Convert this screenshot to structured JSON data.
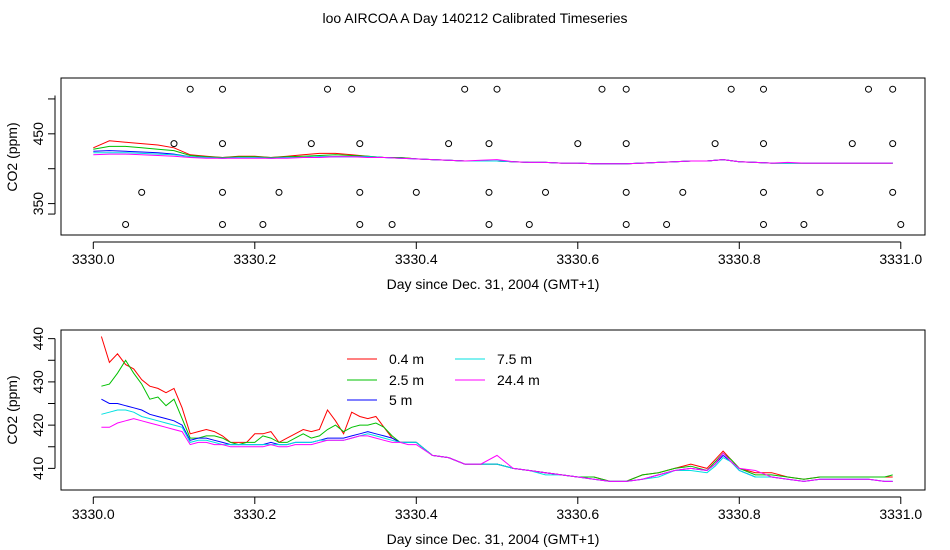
{
  "title": "loo AIRCOA A  Day 140212  Calibrated Timeseries",
  "chart_data": [
    {
      "type": "scatter",
      "xlabel": "Day since Dec. 31, 2004 (GMT+1)",
      "ylabel": "CO2 (ppm)",
      "xlim": [
        3329.96,
        3331.03
      ],
      "ylim": [
        305,
        530
      ],
      "xticks": [
        "3330.0",
        "3330.2",
        "3330.4",
        "3330.6",
        "3330.8",
        "3331.0"
      ],
      "yticks": [
        "350",
        "450"
      ],
      "x": [
        3330.0,
        3330.02,
        3330.04,
        3330.06,
        3330.08,
        3330.1,
        3330.12,
        3330.14,
        3330.16,
        3330.18,
        3330.2,
        3330.22,
        3330.24,
        3330.26,
        3330.28,
        3330.3,
        3330.32,
        3330.34,
        3330.36,
        3330.38,
        3330.4,
        3330.42,
        3330.44,
        3330.46,
        3330.48,
        3330.5,
        3330.52,
        3330.54,
        3330.56,
        3330.58,
        3330.6,
        3330.62,
        3330.64,
        3330.66,
        3330.68,
        3330.7,
        3330.72,
        3330.74,
        3330.76,
        3330.78,
        3330.8,
        3330.82,
        3330.84,
        3330.86,
        3330.88,
        3330.9,
        3330.92,
        3330.94,
        3330.96,
        3330.98,
        3330.99
      ],
      "series": [
        {
          "color": "#ff0000",
          "values": [
            430,
            440,
            438,
            436,
            434,
            430,
            420,
            418,
            416,
            418,
            418,
            416,
            418,
            420,
            422,
            422,
            420,
            418,
            416,
            416,
            414,
            413,
            412,
            411,
            411,
            411,
            410,
            409,
            409,
            408,
            408,
            407,
            407,
            407,
            408,
            409,
            410,
            411,
            411,
            413,
            410,
            409,
            408,
            408,
            408,
            408,
            408,
            408,
            408,
            408,
            408
          ]
        },
        {
          "color": "#00c000",
          "values": [
            428,
            432,
            432,
            430,
            428,
            426,
            419,
            417,
            416,
            417,
            417,
            416,
            417,
            418,
            419,
            420,
            419,
            418,
            416,
            416,
            414,
            413,
            412,
            411,
            411,
            411,
            410,
            409,
            409,
            408,
            408,
            407,
            407,
            407,
            408,
            409,
            410,
            411,
            411,
            413,
            410,
            409,
            408,
            408,
            408,
            408,
            408,
            408,
            408,
            408,
            408
          ]
        },
        {
          "color": "#0000ff",
          "values": [
            425,
            426,
            425,
            424,
            423,
            421,
            417,
            416,
            415,
            416,
            416,
            415,
            416,
            416,
            417,
            417,
            417,
            417,
            416,
            415,
            414,
            413,
            412,
            411,
            411,
            411,
            410,
            409,
            409,
            408,
            408,
            407,
            407,
            407,
            408,
            409,
            410,
            411,
            411,
            413,
            410,
            409,
            408,
            408,
            408,
            408,
            408,
            408,
            408,
            408,
            408
          ]
        },
        {
          "color": "#00e0e0",
          "values": [
            423,
            423,
            423,
            422,
            421,
            420,
            417,
            416,
            415,
            416,
            416,
            415,
            416,
            416,
            417,
            417,
            417,
            417,
            416,
            415,
            414,
            413,
            412,
            411,
            411,
            411,
            410,
            409,
            409,
            408,
            408,
            407,
            407,
            407,
            408,
            409,
            410,
            411,
            411,
            413,
            410,
            409,
            408,
            408,
            408,
            408,
            408,
            408,
            408,
            408,
            408
          ]
        },
        {
          "color": "#ff00ff",
          "values": [
            420,
            421,
            421,
            420,
            419,
            418,
            416,
            415,
            415,
            415,
            415,
            415,
            415,
            416,
            416,
            417,
            417,
            416,
            416,
            415,
            414,
            413,
            412,
            411,
            412,
            413,
            410,
            409,
            409,
            408,
            408,
            407,
            407,
            407,
            408,
            409,
            410,
            411,
            411,
            413,
            410,
            409,
            408,
            409,
            408,
            408,
            408,
            408,
            408,
            408,
            408
          ]
        }
      ],
      "points": [
        {
          "x": 3330.12,
          "y": 514
        },
        {
          "x": 3330.16,
          "y": 514
        },
        {
          "x": 3330.29,
          "y": 514
        },
        {
          "x": 3330.32,
          "y": 514
        },
        {
          "x": 3330.46,
          "y": 514
        },
        {
          "x": 3330.5,
          "y": 514
        },
        {
          "x": 3330.63,
          "y": 514
        },
        {
          "x": 3330.66,
          "y": 514
        },
        {
          "x": 3330.79,
          "y": 514
        },
        {
          "x": 3330.83,
          "y": 514
        },
        {
          "x": 3330.96,
          "y": 514
        },
        {
          "x": 3330.99,
          "y": 514
        },
        {
          "x": 3330.1,
          "y": 436
        },
        {
          "x": 3330.16,
          "y": 436
        },
        {
          "x": 3330.27,
          "y": 436
        },
        {
          "x": 3330.33,
          "y": 436
        },
        {
          "x": 3330.44,
          "y": 436
        },
        {
          "x": 3330.49,
          "y": 436
        },
        {
          "x": 3330.6,
          "y": 436
        },
        {
          "x": 3330.66,
          "y": 436
        },
        {
          "x": 3330.77,
          "y": 436
        },
        {
          "x": 3330.83,
          "y": 436
        },
        {
          "x": 3330.94,
          "y": 436
        },
        {
          "x": 3330.99,
          "y": 436
        },
        {
          "x": 3330.06,
          "y": 366
        },
        {
          "x": 3330.16,
          "y": 366
        },
        {
          "x": 3330.23,
          "y": 366
        },
        {
          "x": 3330.33,
          "y": 366
        },
        {
          "x": 3330.4,
          "y": 366
        },
        {
          "x": 3330.49,
          "y": 366
        },
        {
          "x": 3330.56,
          "y": 366
        },
        {
          "x": 3330.66,
          "y": 366
        },
        {
          "x": 3330.73,
          "y": 366
        },
        {
          "x": 3330.83,
          "y": 366
        },
        {
          "x": 3330.9,
          "y": 366
        },
        {
          "x": 3330.99,
          "y": 366
        },
        {
          "x": 3330.04,
          "y": 320
        },
        {
          "x": 3330.16,
          "y": 320
        },
        {
          "x": 3330.21,
          "y": 320
        },
        {
          "x": 3330.33,
          "y": 320
        },
        {
          "x": 3330.37,
          "y": 320
        },
        {
          "x": 3330.49,
          "y": 320
        },
        {
          "x": 3330.54,
          "y": 320
        },
        {
          "x": 3330.66,
          "y": 320
        },
        {
          "x": 3330.71,
          "y": 320
        },
        {
          "x": 3330.83,
          "y": 320
        },
        {
          "x": 3330.88,
          "y": 320
        },
        {
          "x": 3331.0,
          "y": 320
        }
      ]
    },
    {
      "type": "line",
      "xlabel": "Day since Dec. 31, 2004 (GMT+1)",
      "ylabel": "CO2 (ppm)",
      "xlim": [
        3329.96,
        3331.03
      ],
      "ylim": [
        405,
        442
      ],
      "xticks": [
        "3330.0",
        "3330.2",
        "3330.4",
        "3330.6",
        "3330.8",
        "3331.0"
      ],
      "yticks": [
        "410",
        "420",
        "430",
        "440"
      ],
      "legend": "top-center",
      "x": [
        3330.01,
        3330.02,
        3330.03,
        3330.04,
        3330.05,
        3330.06,
        3330.07,
        3330.08,
        3330.09,
        3330.1,
        3330.11,
        3330.12,
        3330.13,
        3330.14,
        3330.15,
        3330.16,
        3330.17,
        3330.18,
        3330.19,
        3330.2,
        3330.21,
        3330.22,
        3330.23,
        3330.24,
        3330.25,
        3330.26,
        3330.27,
        3330.28,
        3330.29,
        3330.3,
        3330.31,
        3330.32,
        3330.33,
        3330.34,
        3330.35,
        3330.36,
        3330.37,
        3330.38,
        3330.39,
        3330.4,
        3330.42,
        3330.44,
        3330.46,
        3330.48,
        3330.5,
        3330.52,
        3330.54,
        3330.56,
        3330.58,
        3330.6,
        3330.62,
        3330.64,
        3330.66,
        3330.68,
        3330.7,
        3330.72,
        3330.74,
        3330.76,
        3330.77,
        3330.78,
        3330.79,
        3330.8,
        3330.82,
        3330.84,
        3330.86,
        3330.88,
        3330.9,
        3330.92,
        3330.94,
        3330.96,
        3330.98,
        3330.99
      ],
      "series": [
        {
          "name": "0.4 m",
          "color": "#ff0000",
          "values": [
            440.5,
            434.5,
            436.5,
            434,
            433,
            430.5,
            429,
            428.5,
            427.5,
            428.5,
            424,
            418,
            418.5,
            419,
            418.5,
            417.5,
            416,
            416,
            416,
            418,
            418,
            418.5,
            416,
            417,
            418,
            419,
            418.5,
            419,
            423.5,
            421,
            418,
            423,
            422,
            421.5,
            422,
            419.5,
            417,
            416,
            416,
            416,
            413,
            412.5,
            411,
            411,
            411,
            410,
            409.5,
            409,
            408.5,
            408,
            408,
            407,
            407,
            408.5,
            409,
            410,
            411,
            410,
            412,
            414,
            412,
            410,
            409,
            409,
            408,
            407.5,
            408,
            408,
            408,
            408,
            408,
            408
          ]
        },
        {
          "name": "2.5 m",
          "color": "#00c000",
          "values": [
            429,
            429.5,
            432,
            435,
            432,
            429.5,
            426,
            426.5,
            424.5,
            426,
            421.5,
            417,
            417,
            417.5,
            417.5,
            417,
            416,
            415.5,
            416,
            416,
            417.5,
            417,
            416,
            416,
            417,
            418,
            417,
            417.5,
            419,
            420,
            418.5,
            419.5,
            420,
            420,
            420.5,
            419.5,
            417.5,
            416,
            416,
            416,
            413,
            412.5,
            411,
            411,
            411,
            410,
            409.5,
            409,
            408.5,
            408,
            408,
            407,
            407,
            408.5,
            409,
            410,
            410.5,
            409.5,
            411.5,
            413.5,
            412,
            410,
            408.5,
            408.5,
            408,
            407.5,
            408,
            408,
            408,
            408,
            408,
            408.5
          ]
        },
        {
          "name": "5 m",
          "color": "#0000ff",
          "values": [
            426,
            425,
            425,
            424.5,
            424,
            423.5,
            422.5,
            422,
            421.5,
            421,
            420,
            416.5,
            417,
            417,
            416.5,
            416,
            415.5,
            415.5,
            415.5,
            415.5,
            415.5,
            416,
            415.5,
            415.5,
            416,
            416,
            416,
            416.5,
            417,
            417,
            417,
            417.5,
            418,
            418.5,
            418,
            417.5,
            417,
            416,
            416,
            416,
            413,
            412.5,
            411,
            411,
            411,
            410,
            409.5,
            409,
            408.5,
            408,
            407.5,
            407,
            407,
            407.5,
            408.5,
            409.5,
            410,
            409.5,
            411,
            413,
            411.5,
            409.5,
            408,
            408,
            407.5,
            407,
            407.5,
            407.5,
            407.5,
            407.5,
            407,
            407
          ]
        },
        {
          "name": "7.5 m",
          "color": "#00e0e0",
          "values": [
            422.5,
            423,
            423.5,
            423.5,
            423,
            422,
            421.5,
            421,
            420.5,
            420,
            419.5,
            416,
            416.5,
            416.5,
            416,
            415.5,
            415.5,
            415.5,
            415.5,
            415.5,
            415.5,
            415.5,
            415.5,
            415.5,
            416,
            416,
            416,
            416.5,
            416.5,
            416.5,
            416.5,
            417,
            417.5,
            418,
            417.5,
            417,
            416.5,
            416,
            416,
            416,
            413,
            412.5,
            411,
            411,
            411,
            410,
            409.5,
            408.5,
            408.5,
            408,
            407.5,
            407,
            407,
            407.5,
            408,
            409.5,
            409.5,
            409,
            410.5,
            412.5,
            411.5,
            409.5,
            408,
            408,
            407.5,
            407,
            407.5,
            407.5,
            407.5,
            407.5,
            407,
            407
          ]
        },
        {
          "name": "24.4 m",
          "color": "#ff00ff",
          "values": [
            419.5,
            419.5,
            420.5,
            421,
            421.5,
            421,
            420.5,
            420,
            419.5,
            419,
            418.5,
            415.5,
            416,
            416,
            415.5,
            415.5,
            415,
            415,
            415,
            415,
            415,
            415.5,
            415,
            415,
            415.5,
            415.5,
            415.5,
            416,
            416.5,
            416.5,
            416.5,
            417,
            417.5,
            417.5,
            417,
            416.5,
            416,
            416,
            415.5,
            415.5,
            413,
            412.5,
            411,
            411,
            413,
            410,
            409.5,
            409,
            408.5,
            408,
            407.5,
            407,
            407,
            407.5,
            408.5,
            409.5,
            410,
            409.5,
            411,
            413.5,
            411.5,
            410,
            409.5,
            408,
            407.5,
            407,
            407.5,
            407.5,
            407.5,
            407.5,
            407,
            407
          ]
        }
      ]
    }
  ]
}
